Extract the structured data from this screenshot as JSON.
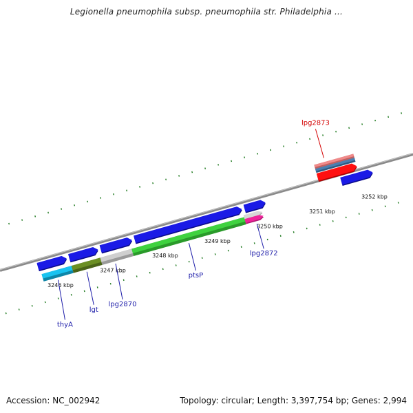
{
  "title": "Legionella pneumophila subsp. pneumophila str. Philadelphia ...",
  "footer": {
    "accession": "Accession: NC_002942",
    "summary": "Topology: circular; Length: 3,397,754 bp; Genes: 2,994"
  },
  "colors": {
    "backbone": "#8a8a8a",
    "tick": "#1f7a1f",
    "forward_gene": "#1a1ae6",
    "label_blue": "#1a1aa8",
    "label_red": "#d40000"
  },
  "kbp_labels": [
    {
      "text": "3246 kbp",
      "pos": 3246
    },
    {
      "text": "3247 kbp",
      "pos": 3247
    },
    {
      "text": "3248 kbp",
      "pos": 3248
    },
    {
      "text": "3249 kbp",
      "pos": 3249
    },
    {
      "text": "3250 kbp",
      "pos": 3250
    },
    {
      "text": "3251 kbp",
      "pos": 3251
    },
    {
      "text": "3252 kbp",
      "pos": 3252
    }
  ],
  "forward_genes": [
    {
      "start": 3245.7,
      "end": 3246.25
    },
    {
      "start": 3246.3,
      "end": 3246.85
    },
    {
      "start": 3246.9,
      "end": 3247.5
    },
    {
      "start": 3247.55,
      "end": 3249.6
    },
    {
      "start": 3249.65,
      "end": 3250.05
    },
    {
      "start": 3251.5,
      "end": 3252.1
    }
  ],
  "orf_genes": [
    {
      "start": 3245.73,
      "end": 3246.3,
      "color": "#19c3f0",
      "shade": "#0e86a8"
    },
    {
      "start": 3246.3,
      "end": 3246.85,
      "color": "#6b8f23",
      "shade": "#4a6418"
    },
    {
      "start": 3246.85,
      "end": 3247.45,
      "color": "#cfcfcf",
      "shade": "#9a9a9a"
    },
    {
      "start": 3247.45,
      "end": 3249.6,
      "color": "#3fd23f",
      "shade": "#2a9a2a"
    },
    {
      "start": 3249.6,
      "end": 3249.95,
      "color": "#d7d7d7",
      "shade": "#a8a8a8",
      "lane": "upper"
    },
    {
      "start": 3249.6,
      "end": 3249.95,
      "color": "#f0239a",
      "shade": "#b01672",
      "lane": "lower"
    }
  ],
  "upper_track": [
    {
      "start": 3251.1,
      "end": 3251.85,
      "color": "#f08a8a",
      "shade": "#c06060",
      "lane": 0
    },
    {
      "start": 3251.1,
      "end": 3251.85,
      "color": "#4a7fb0",
      "shade": "#2e5a80",
      "lane": 1
    },
    {
      "start": 3251.1,
      "end": 3251.85,
      "color": "#ff1010",
      "shade": "#b00000",
      "lane": 2
    }
  ],
  "gene_labels": [
    {
      "text": "thyA",
      "pos": 3246.0,
      "track": "bottom",
      "drop": 1.0
    },
    {
      "text": "lgt",
      "pos": 3246.55,
      "track": "bottom",
      "drop": 0.75
    },
    {
      "text": "lpg2870",
      "pos": 3247.1,
      "track": "bottom",
      "drop": 0.85
    },
    {
      "text": "ptsP",
      "pos": 3248.5,
      "track": "bottom",
      "drop": 0.55
    },
    {
      "text": "lpg2872",
      "pos": 3249.8,
      "track": "bottom",
      "drop": 0.45
    },
    {
      "text": "lpg2873",
      "pos": 3251.3,
      "track": "top",
      "red": true
    }
  ]
}
